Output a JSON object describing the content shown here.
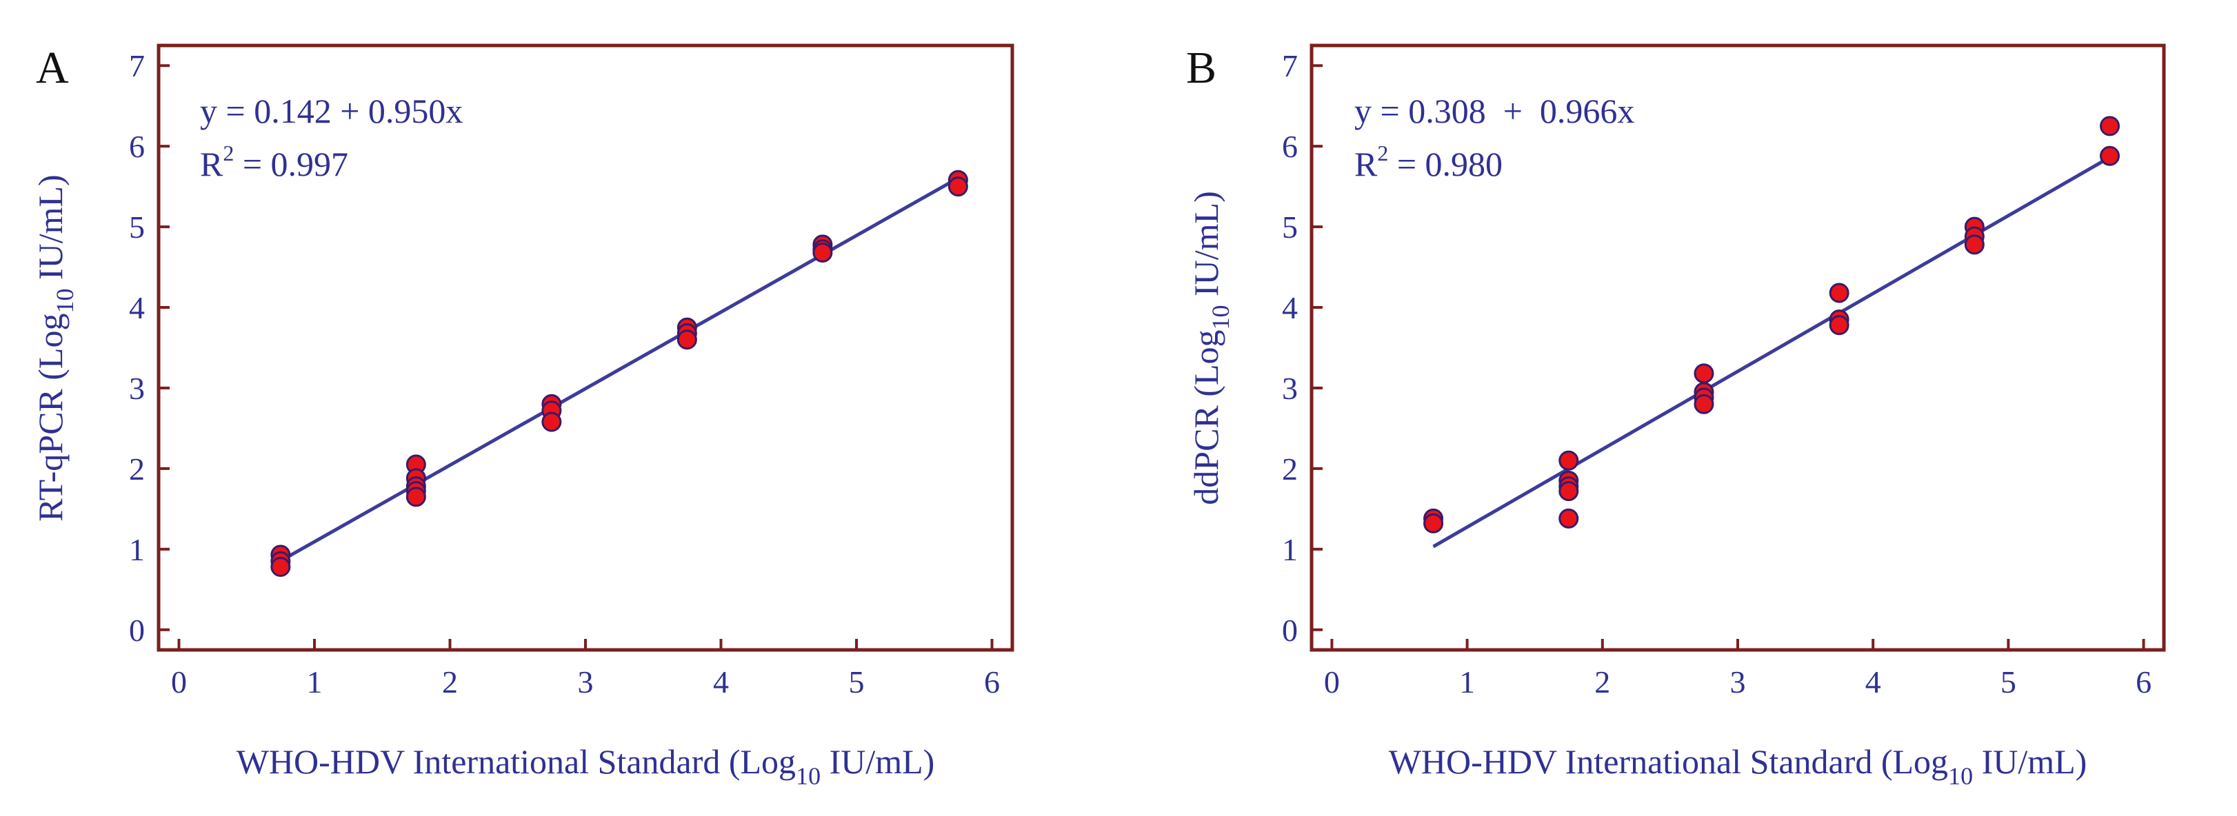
{
  "colors": {
    "frame": "#7a1f1f",
    "text": "#2e3192",
    "fit_line": "#3d3c9a",
    "marker_fill": "#e8141c",
    "marker_edge": "#3a1a6a"
  },
  "chart_data": [
    {
      "type": "scatter",
      "panel_label": "A",
      "xlabel": {
        "main": "WHO-HDV International Standard (Log",
        "sub": "10",
        "tail": " IU/mL)"
      },
      "ylabel": {
        "main": "RT-qPCR (Log",
        "sub": "10",
        "tail": " IU/mL)"
      },
      "xlim": [
        -0.15,
        6.15
      ],
      "ylim": [
        -0.25,
        7.25
      ],
      "xticks": [
        "0",
        "1",
        "2",
        "3",
        "4",
        "5",
        "6"
      ],
      "yticks": [
        "0",
        "1",
        "2",
        "3",
        "4",
        "5",
        "6",
        "7"
      ],
      "equation": "y = 0.142 + 0.950x",
      "r2_prefix": "R",
      "r2_sup": "2",
      "r2_value": " = 0.997",
      "fit": {
        "intercept": 0.142,
        "slope": 0.95,
        "x_range": [
          0.75,
          5.75
        ]
      },
      "points": [
        [
          0.75,
          0.93
        ],
        [
          0.75,
          0.85
        ],
        [
          0.75,
          0.78
        ],
        [
          1.75,
          2.05
        ],
        [
          1.75,
          1.88
        ],
        [
          1.75,
          1.78
        ],
        [
          1.75,
          1.72
        ],
        [
          1.75,
          1.65
        ],
        [
          2.75,
          2.8
        ],
        [
          2.75,
          2.72
        ],
        [
          2.75,
          2.58
        ],
        [
          3.75,
          3.75
        ],
        [
          3.75,
          3.68
        ],
        [
          3.75,
          3.6
        ],
        [
          4.75,
          4.78
        ],
        [
          4.75,
          4.72
        ],
        [
          4.75,
          4.68
        ],
        [
          5.75,
          5.58
        ],
        [
          5.75,
          5.5
        ]
      ]
    },
    {
      "type": "scatter",
      "panel_label": "B",
      "xlabel": {
        "main": "WHO-HDV International Standard (Log",
        "sub": "10",
        "tail": " IU/mL)"
      },
      "ylabel": {
        "main": "ddPCR (Log",
        "sub": "10",
        "tail": " IU/mL)"
      },
      "xlim": [
        -0.15,
        6.15
      ],
      "ylim": [
        -0.25,
        7.25
      ],
      "xticks": [
        "0",
        "1",
        "2",
        "3",
        "4",
        "5",
        "6"
      ],
      "yticks": [
        "0",
        "1",
        "2",
        "3",
        "4",
        "5",
        "6",
        "7"
      ],
      "equation": "y = 0.308  +  0.966x",
      "r2_prefix": "R",
      "r2_sup": "2",
      "r2_value": " = 0.980",
      "fit": {
        "intercept": 0.308,
        "slope": 0.966,
        "x_range": [
          0.75,
          5.75
        ]
      },
      "points": [
        [
          0.75,
          1.38
        ],
        [
          0.75,
          1.32
        ],
        [
          1.75,
          2.1
        ],
        [
          1.75,
          1.85
        ],
        [
          1.75,
          1.78
        ],
        [
          1.75,
          1.72
        ],
        [
          1.75,
          1.38
        ],
        [
          2.75,
          3.18
        ],
        [
          2.75,
          2.95
        ],
        [
          2.75,
          2.88
        ],
        [
          2.75,
          2.8
        ],
        [
          3.75,
          4.18
        ],
        [
          3.75,
          3.85
        ],
        [
          3.75,
          3.78
        ],
        [
          4.75,
          5.0
        ],
        [
          4.75,
          4.88
        ],
        [
          4.75,
          4.78
        ],
        [
          5.75,
          6.25
        ],
        [
          5.75,
          5.88
        ]
      ]
    }
  ]
}
